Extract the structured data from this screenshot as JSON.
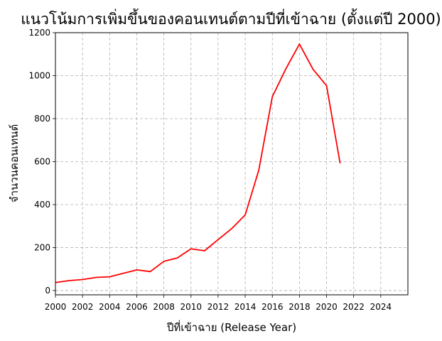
{
  "chart_data": {
    "type": "line",
    "title": "แนวโน้มการเพิ่มขึ้นของคอนเทนต์ตามปีที่เข้าฉาย (ตั้งแต่ปี 2000)",
    "xlabel": "ปีที่เข้าฉาย (Release Year)",
    "ylabel": "จำนวนคอนเทนต์",
    "xlim": [
      2000,
      2026
    ],
    "ylim": [
      -20,
      1200
    ],
    "xticks": [
      2000,
      2002,
      2004,
      2006,
      2008,
      2010,
      2012,
      2014,
      2016,
      2018,
      2020,
      2022,
      2024
    ],
    "yticks": [
      0,
      200,
      400,
      600,
      800,
      1000,
      1200
    ],
    "grid": true,
    "legend": "none",
    "color": "#ff0000",
    "x": [
      2000,
      2001,
      2002,
      2003,
      2004,
      2005,
      2006,
      2007,
      2008,
      2009,
      2010,
      2011,
      2012,
      2013,
      2014,
      2015,
      2016,
      2017,
      2018,
      2019,
      2020,
      2021
    ],
    "y": [
      37,
      46,
      51,
      61,
      64,
      80,
      96,
      88,
      136,
      152,
      194,
      185,
      237,
      288,
      352,
      560,
      902,
      1032,
      1147,
      1030,
      953,
      592
    ]
  }
}
